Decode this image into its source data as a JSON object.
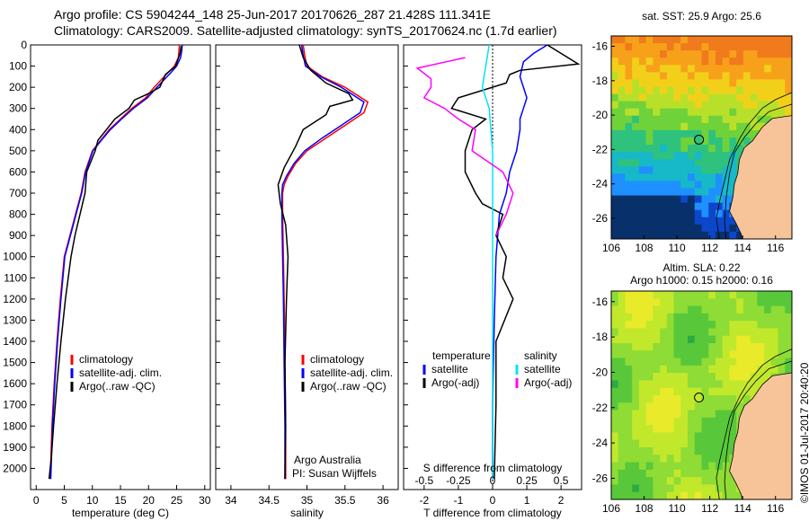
{
  "header": {
    "line1": "Argo profile: CS 5904244_148 25-Jun-2017 20170626_287 21.428S 111.341E",
    "line2": "Climatology: CARS2009. Satellite-adjusted climatology: synTS_20170624.nc (1.7d earlier)"
  },
  "side_stamp": "©IMOS 01-Jul-2017 20:40:20",
  "colors": {
    "climatology": "#ff0000",
    "satellite": "#0000ff",
    "argo": "#000000",
    "sal_satellite": "#00e5ee",
    "sal_argo": "#ff00ff",
    "land": "#f7c49a"
  },
  "chart_data": [
    {
      "type": "line",
      "id": "temperature",
      "xlabel": "temperature (deg C)",
      "ylabel": "",
      "xlim": [
        -1,
        31
      ],
      "ylim": [
        2100,
        0
      ],
      "xticks": [
        0,
        5,
        10,
        15,
        20,
        25,
        30
      ],
      "yticks": [
        0,
        100,
        200,
        300,
        400,
        500,
        600,
        700,
        800,
        900,
        1000,
        1100,
        1200,
        1300,
        1400,
        1500,
        1600,
        1700,
        1800,
        1900,
        2000
      ],
      "legend": [
        "climatology",
        "satellite-adj. clim.",
        "Argo(..raw -QC)"
      ],
      "series": [
        {
          "name": "climatology",
          "color": "#ff0000",
          "x": [
            25.5,
            25.4,
            25.3,
            24.6,
            23.5,
            21.0,
            19.5,
            17.0,
            15.0,
            13.0,
            11.5,
            10.0,
            8.7,
            8.0,
            7.0,
            6.0,
            5.0,
            4.3,
            3.7,
            3.2,
            2.8,
            2.5
          ],
          "y": [
            0,
            30,
            60,
            100,
            130,
            200,
            250,
            300,
            350,
            400,
            450,
            500,
            600,
            700,
            800,
            900,
            1000,
            1200,
            1400,
            1600,
            1800,
            2050
          ]
        },
        {
          "name": "satellite-adj. clim.",
          "color": "#0000ff",
          "x": [
            26.0,
            25.9,
            25.7,
            25.0,
            24.0,
            21.5,
            19.8,
            17.3,
            15.2,
            13.2,
            11.6,
            10.1,
            8.8,
            8.1,
            7.1,
            6.1,
            5.1,
            4.4,
            3.8,
            3.3,
            2.9,
            2.6
          ],
          "y": [
            0,
            30,
            60,
            100,
            130,
            200,
            250,
            300,
            350,
            400,
            450,
            500,
            600,
            700,
            800,
            900,
            1000,
            1200,
            1400,
            1600,
            1800,
            2050
          ]
        },
        {
          "name": "Argo(..raw -QC)",
          "color": "#000000",
          "x": [
            25.8,
            25.6,
            25.2,
            24.8,
            23.0,
            22.0,
            20.0,
            17.5,
            16.5,
            14.0,
            12.5,
            11.0,
            10.5,
            9.0,
            8.7,
            7.8,
            6.9,
            6.2,
            5.2,
            4.4,
            3.7,
            3.1,
            2.7,
            2.3
          ],
          "y": [
            5,
            40,
            70,
            100,
            140,
            200,
            230,
            260,
            300,
            350,
            400,
            450,
            500,
            600,
            700,
            800,
            900,
            1000,
            1200,
            1400,
            1600,
            1800,
            1950,
            2050
          ]
        }
      ]
    },
    {
      "type": "line",
      "id": "salinity",
      "xlabel": "salinity",
      "ylabel": "",
      "xlim": [
        33.8,
        36.2
      ],
      "ylim": [
        2100,
        0
      ],
      "xticks": [
        34,
        34.5,
        35,
        35.5,
        36
      ],
      "legend": [
        "climatology",
        "satellite-adj. clim.",
        "Argo(..raw -QC)"
      ],
      "annotation": [
        "Argo Australia",
        "PI: Susan Wijffels"
      ],
      "series": [
        {
          "name": "climatology",
          "color": "#ff0000",
          "x": [
            34.95,
            34.97,
            35.0,
            35.2,
            35.5,
            35.8,
            35.75,
            35.5,
            35.25,
            35.0,
            34.85,
            34.75,
            34.7,
            34.68,
            34.68,
            34.69,
            34.7,
            34.71,
            34.72,
            34.72
          ],
          "y": [
            0,
            50,
            100,
            150,
            200,
            270,
            320,
            380,
            440,
            500,
            560,
            620,
            660,
            700,
            800,
            1000,
            1200,
            1500,
            1800,
            2050
          ]
        },
        {
          "name": "satellite-adj. clim.",
          "color": "#0000ff",
          "x": [
            34.93,
            34.95,
            34.98,
            35.18,
            35.45,
            35.75,
            35.7,
            35.45,
            35.2,
            34.97,
            34.83,
            34.73,
            34.68,
            34.67,
            34.67,
            34.68,
            34.69,
            34.7,
            34.71,
            34.71
          ],
          "y": [
            0,
            50,
            100,
            150,
            200,
            270,
            320,
            380,
            440,
            500,
            560,
            620,
            660,
            700,
            800,
            1000,
            1200,
            1500,
            1800,
            2050
          ]
        },
        {
          "name": "Argo(..raw -QC)",
          "color": "#000000",
          "x": [
            34.9,
            34.95,
            35.05,
            35.25,
            35.55,
            35.6,
            35.3,
            35.25,
            34.95,
            34.85,
            34.7,
            34.62,
            34.65,
            34.72,
            34.75,
            34.73,
            34.71,
            34.72,
            34.71
          ],
          "y": [
            0,
            60,
            120,
            180,
            230,
            260,
            290,
            330,
            400,
            480,
            580,
            660,
            750,
            850,
            1000,
            1200,
            1500,
            1800,
            2050
          ]
        }
      ]
    },
    {
      "type": "line",
      "id": "differences",
      "xlabel": "T difference from climatology",
      "x2label": "S difference from climatology",
      "xlim": [
        -2.6,
        2.6
      ],
      "ylim": [
        2100,
        0
      ],
      "xticks": [
        -2,
        -1,
        0,
        1,
        2
      ],
      "x2ticks_labels": [
        "-0.5",
        "-0.25",
        "0",
        "0.25",
        "0.5"
      ],
      "x2ticks": [
        -2,
        -1,
        0,
        1,
        2
      ],
      "legend_headers": [
        "temperature",
        "salinity"
      ],
      "legend": [
        "satellite",
        "Argo(-adj)",
        "satellite",
        "Argo(-adj)"
      ],
      "series": [
        {
          "name": "satellite",
          "group": "temperature",
          "color": "#0000ff",
          "x": [
            1.6,
            1.2,
            0.9,
            0.8,
            1.0,
            0.9,
            0.8,
            0.8,
            0.7,
            0.5,
            0.4,
            0.2,
            0.1,
            0.05,
            0.0,
            0.0
          ],
          "y": [
            0,
            40,
            80,
            150,
            250,
            300,
            350,
            400,
            500,
            600,
            700,
            800,
            1000,
            1300,
            1700,
            2050
          ]
        },
        {
          "name": "Argo(-adj)",
          "group": "temperature",
          "color": "#000000",
          "x": [
            1.6,
            2.5,
            0.8,
            0.5,
            0.4,
            -1.0,
            -1.2,
            -0.2,
            -0.6,
            -0.8,
            -0.8,
            -0.5,
            -0.3,
            0.3,
            0.1,
            0.4,
            0.3,
            0.6,
            0.1,
            0.1,
            0.05
          ],
          "y": [
            0,
            90,
            120,
            140,
            180,
            250,
            300,
            350,
            400,
            500,
            600,
            700,
            750,
            800,
            900,
            1000,
            1100,
            1200,
            1400,
            1700,
            2050
          ]
        },
        {
          "name": "satellite",
          "group": "salinity",
          "color": "#00e5ee",
          "x": [
            -0.1,
            -0.2,
            -0.3,
            -0.1,
            0.0,
            0.0,
            0.0,
            0.0,
            0.0
          ],
          "y": [
            0,
            100,
            200,
            300,
            500,
            800,
            1200,
            1600,
            2050
          ]
        },
        {
          "name": "Argo(-adj)",
          "group": "salinity",
          "color": "#ff00ff",
          "x": [
            -0.8,
            -2.2,
            -1.8,
            -1.8,
            -2.0,
            -1.4,
            -1.0,
            -0.5,
            -0.6,
            0.3,
            0.6,
            0.4,
            0.1
          ],
          "y": [
            60,
            110,
            160,
            200,
            250,
            300,
            350,
            400,
            500,
            600,
            700,
            800,
            900
          ]
        }
      ]
    },
    {
      "type": "heatmap",
      "id": "sst-map",
      "title": "sat. SST: 25.9 Argo: 25.6",
      "xticks": [
        106,
        108,
        110,
        112,
        114,
        116
      ],
      "yticks": [
        -16,
        -18,
        -20,
        -22,
        -24,
        -26
      ],
      "xlim": [
        106,
        117
      ],
      "ylim": [
        -27.2,
        -15.4
      ],
      "float_position": {
        "lon": 111.341,
        "lat": -21.428
      }
    },
    {
      "type": "heatmap",
      "id": "sla-map",
      "title": "Altim. SLA: 0.22",
      "subtitle": "Argo h1000: 0.15 h2000: 0.16",
      "xticks": [
        106,
        108,
        110,
        112,
        114,
        116
      ],
      "yticks": [
        -16,
        -18,
        -20,
        -22,
        -24,
        -26
      ],
      "xlim": [
        106,
        117
      ],
      "ylim": [
        -27.2,
        -15.4
      ],
      "float_position": {
        "lon": 111.341,
        "lat": -21.428
      }
    }
  ]
}
